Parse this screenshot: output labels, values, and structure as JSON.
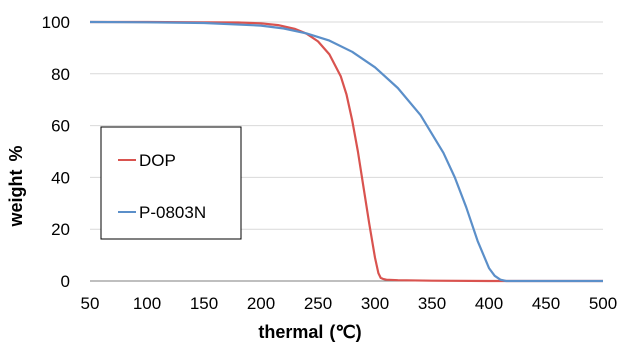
{
  "chart_data": {
    "type": "line",
    "title": "",
    "xlabel": "thermal",
    "xunit": "(℃)",
    "ylabel": "weight",
    "yunit": "%",
    "xlim": [
      50,
      500
    ],
    "ylim": [
      0,
      100
    ],
    "xticks": [
      50,
      100,
      150,
      200,
      250,
      300,
      350,
      400,
      450,
      500
    ],
    "yticks": [
      0,
      20,
      40,
      60,
      80,
      100
    ],
    "grid": "horizontal",
    "legend_position": "left-middle",
    "series": [
      {
        "name": "DOP",
        "color": "#d9534f",
        "x": [
          50,
          100,
          150,
          180,
          200,
          215,
          230,
          240,
          250,
          260,
          270,
          275,
          280,
          285,
          290,
          295,
          300,
          303,
          305,
          307,
          310,
          320,
          350,
          400,
          450,
          500
        ],
        "y": [
          100,
          100,
          99.9,
          99.8,
          99.5,
          98.8,
          97.3,
          95.5,
          92.5,
          87.5,
          79,
          72,
          62,
          50,
          36,
          22,
          9,
          3,
          1.2,
          0.8,
          0.5,
          0.3,
          0.1,
          0,
          0,
          0
        ]
      },
      {
        "name": "P-0803N",
        "color": "#5b8fc9",
        "x": [
          50,
          100,
          150,
          200,
          220,
          240,
          260,
          280,
          300,
          320,
          340,
          360,
          370,
          380,
          390,
          400,
          405,
          410,
          415,
          450,
          500
        ],
        "y": [
          100,
          99.9,
          99.6,
          98.6,
          97.5,
          95.6,
          92.8,
          88.5,
          82.5,
          74.5,
          64,
          49.5,
          40,
          28.5,
          15.5,
          5,
          2,
          0.5,
          0,
          0,
          0
        ]
      }
    ]
  }
}
